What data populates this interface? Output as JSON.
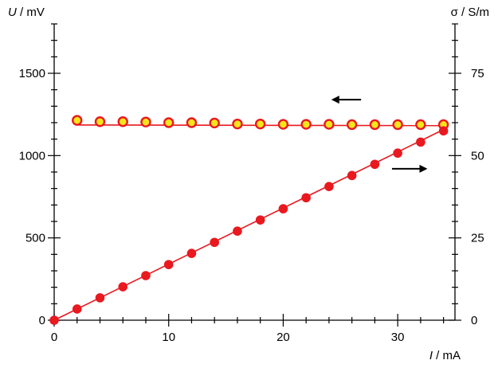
{
  "chart_data": {
    "type": "scatter",
    "title": "",
    "x_axis": {
      "label_symbol": "I",
      "label_unit": " / mA",
      "range": [
        0,
        35
      ],
      "major_ticks": [
        0,
        10,
        20,
        30
      ],
      "minor_step": 2
    },
    "y_left_axis": {
      "label_symbol": "U",
      "label_unit": " / mV",
      "range": [
        0,
        1800
      ],
      "major_ticks": [
        0,
        500,
        1000,
        1500
      ],
      "minor_step": 100
    },
    "y_right_axis": {
      "label_symbol": "σ",
      "label_unit": " / S/m",
      "range": [
        0,
        90
      ],
      "major_ticks": [
        0,
        25,
        50,
        75
      ],
      "minor_step": 5
    },
    "series": [
      {
        "axis": "right",
        "marker": "hollow-circle",
        "color": "#e8191f",
        "fill": "#f5e51b",
        "x": [
          2,
          4,
          6,
          8,
          10,
          12,
          14,
          16,
          18,
          20,
          22,
          24,
          26,
          28,
          30,
          32,
          34
        ],
        "y": [
          60.7,
          60.3,
          60.3,
          60.2,
          60.0,
          60.0,
          59.9,
          59.6,
          59.6,
          59.5,
          59.5,
          59.5,
          59.4,
          59.4,
          59.4,
          59.4,
          59.4
        ],
        "fit": {
          "x": [
            2,
            34
          ],
          "y": [
            59.3,
            59.1
          ]
        }
      },
      {
        "axis": "left",
        "marker": "filled-circle",
        "color": "#e8191f",
        "x": [
          0,
          2,
          4,
          6,
          8,
          10,
          12,
          14,
          16,
          18,
          20,
          22,
          24,
          26,
          28,
          30,
          32,
          34
        ],
        "y": [
          0,
          68,
          136,
          203,
          271,
          338,
          406,
          473,
          541,
          609,
          677,
          744,
          812,
          879,
          947,
          1015,
          1082,
          1150
        ],
        "fit": {
          "x": [
            0,
            34.2
          ],
          "y": [
            0,
            1165
          ]
        }
      }
    ],
    "arrows": [
      {
        "direction": "left",
        "x_from": 26.8,
        "x_to": 24.2,
        "y_left": 1340
      },
      {
        "direction": "right",
        "x_from": 29.5,
        "x_to": 32.6,
        "y_left": 920
      }
    ]
  }
}
